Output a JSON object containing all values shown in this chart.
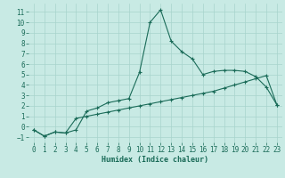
{
  "xlabel": "Humidex (Indice chaleur)",
  "xlim": [
    -0.5,
    23.5
  ],
  "ylim": [
    -1.5,
    11.8
  ],
  "xticks": [
    0,
    1,
    2,
    3,
    4,
    5,
    6,
    7,
    8,
    9,
    10,
    11,
    12,
    13,
    14,
    15,
    16,
    17,
    18,
    19,
    20,
    21,
    22,
    23
  ],
  "yticks": [
    -1,
    0,
    1,
    2,
    3,
    4,
    5,
    6,
    7,
    8,
    9,
    10,
    11
  ],
  "background_color": "#c8eae4",
  "grid_color": "#a8d4cc",
  "line_color": "#1a6b58",
  "line1_x": [
    0,
    1,
    2,
    3,
    4,
    5,
    6,
    7,
    8,
    9,
    10,
    11,
    12,
    13,
    14,
    15,
    16,
    17,
    18,
    19,
    20,
    21,
    22,
    23
  ],
  "line1_y": [
    -0.3,
    -0.9,
    -0.5,
    -0.6,
    -0.3,
    1.5,
    1.8,
    2.3,
    2.5,
    2.7,
    5.2,
    10.0,
    11.2,
    8.2,
    7.2,
    6.5,
    5.0,
    5.3,
    5.4,
    5.4,
    5.3,
    4.8,
    3.8,
    2.1
  ],
  "line2_x": [
    0,
    1,
    2,
    3,
    4,
    5,
    6,
    7,
    8,
    9,
    10,
    11,
    12,
    13,
    14,
    15,
    16,
    17,
    18,
    19,
    20,
    21,
    22,
    23
  ],
  "line2_y": [
    -0.3,
    -0.9,
    -0.5,
    -0.6,
    0.8,
    1.0,
    1.2,
    1.4,
    1.6,
    1.8,
    2.0,
    2.2,
    2.4,
    2.6,
    2.8,
    3.0,
    3.2,
    3.4,
    3.7,
    4.0,
    4.3,
    4.6,
    4.9,
    2.1
  ],
  "tick_fontsize": 5.5,
  "xlabel_fontsize": 6,
  "lw": 0.8,
  "markersize": 2.5,
  "markeredgewidth": 0.8
}
